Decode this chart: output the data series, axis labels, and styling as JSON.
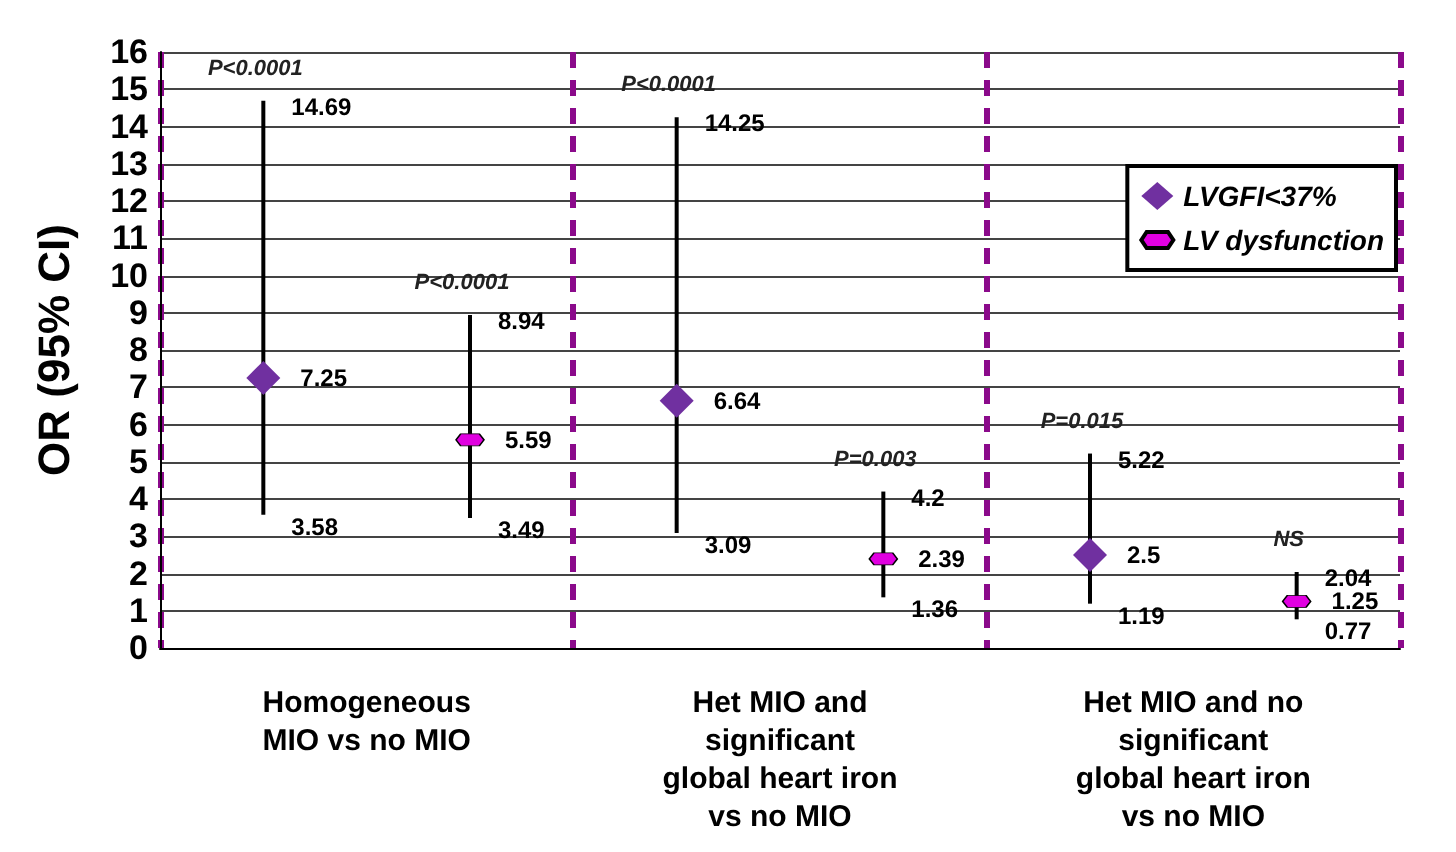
{
  "chart_data": {
    "type": "scatter",
    "ylabel": "OR (95% CI)",
    "categories": [
      "Homogeneous\nMIO vs no MIO",
      "Het MIO and\nsignificant\nglobal heart iron\nvs no MIO",
      "Het MIO and no\nsignificant\nglobal heart iron\nvs no MIO"
    ],
    "series": [
      {
        "name": "LVGFI<37%",
        "color": "#7030a0",
        "marker": "diamond",
        "values": [
          7.25,
          6.64,
          2.5
        ],
        "errors": [
          [
            3.58,
            14.69
          ],
          [
            3.09,
            14.25
          ],
          [
            1.19,
            5.22
          ]
        ]
      },
      {
        "name": "LV dysfunction",
        "color": "#e000e0",
        "values": [
          5.59,
          2.39,
          1.25
        ],
        "errors": [
          [
            3.49,
            8.94
          ],
          [
            1.36,
            4.2
          ],
          [
            0.77,
            2.04
          ]
        ]
      }
    ],
    "ylim": [
      0,
      16
    ],
    "yticks": [
      0,
      1,
      2,
      3,
      4,
      5,
      6,
      7,
      8,
      9,
      10,
      11,
      12,
      13,
      14,
      15,
      16
    ],
    "grid": true,
    "legend": "top right",
    "data_labels": true,
    "annotations": [
      "P<0.0001",
      "P<0.0001",
      "P<0.0001",
      "P=0.003",
      "P=0.015",
      "NS",
      "14.69",
      "3.58",
      "8.94",
      "3.49",
      "14.25",
      "3.09",
      "4.2",
      "1.36",
      "5.22",
      "1.19",
      "2.04",
      "0.77"
    ]
  }
}
